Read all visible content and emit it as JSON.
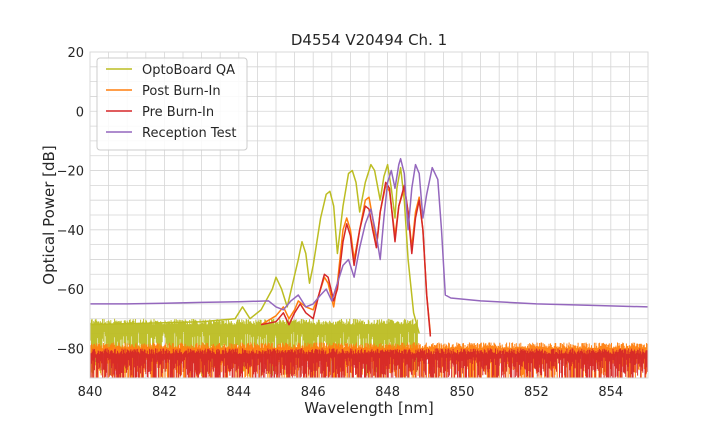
{
  "chart_data": {
    "type": "line",
    "title": "D4554 V20494 Ch. 1",
    "xlabel": "Wavelength [nm]",
    "ylabel": "Optical Power [dB]",
    "xlim": [
      840,
      855
    ],
    "ylim": [
      -90,
      20
    ],
    "x_ticks": [
      840,
      842,
      844,
      846,
      848,
      850,
      852,
      854
    ],
    "y_ticks": [
      20,
      0,
      -20,
      -40,
      -60,
      -80
    ],
    "x_tick_labels": [
      "840",
      "842",
      "844",
      "846",
      "848",
      "850",
      "852",
      "854"
    ],
    "y_tick_labels": [
      "20",
      "0",
      "−20",
      "−40",
      "−60",
      "−80"
    ],
    "minor_x_step": 0.5,
    "minor_y_step": 5,
    "grid": true,
    "legend_position": "top-left",
    "series": [
      {
        "name": "OptoBoard QA",
        "color": "#bcbd22",
        "noise_floor": {
          "x_start": 840.0,
          "x_end": 848.8,
          "level": -70,
          "spread": 15
        },
        "points": [
          [
            840.0,
            -72
          ],
          [
            843.0,
            -71
          ],
          [
            843.9,
            -70
          ],
          [
            844.1,
            -66
          ],
          [
            844.3,
            -70
          ],
          [
            844.6,
            -67
          ],
          [
            844.9,
            -60
          ],
          [
            845.0,
            -56
          ],
          [
            845.15,
            -60
          ],
          [
            845.3,
            -66
          ],
          [
            845.45,
            -58
          ],
          [
            845.6,
            -50
          ],
          [
            845.7,
            -44
          ],
          [
            845.8,
            -48
          ],
          [
            845.9,
            -58
          ],
          [
            846.0,
            -52
          ],
          [
            846.2,
            -36
          ],
          [
            846.35,
            -28
          ],
          [
            846.45,
            -27
          ],
          [
            846.55,
            -32
          ],
          [
            846.65,
            -48
          ],
          [
            846.8,
            -32
          ],
          [
            846.95,
            -21
          ],
          [
            847.05,
            -20
          ],
          [
            847.15,
            -24
          ],
          [
            847.25,
            -34
          ],
          [
            847.4,
            -24
          ],
          [
            847.55,
            -18
          ],
          [
            847.65,
            -20
          ],
          [
            847.8,
            -30
          ],
          [
            847.9,
            -22
          ],
          [
            848.0,
            -18
          ],
          [
            848.1,
            -26
          ],
          [
            848.2,
            -36
          ],
          [
            848.25,
            -26
          ],
          [
            848.35,
            -19
          ],
          [
            848.45,
            -30
          ],
          [
            848.55,
            -50
          ],
          [
            848.7,
            -68
          ],
          [
            848.85,
            -75
          ]
        ]
      },
      {
        "name": "Post Burn-In",
        "color": "#ff7f0e",
        "noise_floor": {
          "x_start": 840.0,
          "x_end": 855.0,
          "level": -78,
          "spread": 12
        },
        "points": [
          [
            844.6,
            -72
          ],
          [
            845.0,
            -69
          ],
          [
            845.2,
            -66
          ],
          [
            845.35,
            -70
          ],
          [
            845.5,
            -67
          ],
          [
            845.6,
            -64
          ],
          [
            845.8,
            -66
          ],
          [
            846.0,
            -67
          ],
          [
            846.15,
            -62
          ],
          [
            846.3,
            -56
          ],
          [
            846.4,
            -58
          ],
          [
            846.55,
            -66
          ],
          [
            846.65,
            -58
          ],
          [
            846.8,
            -40
          ],
          [
            846.9,
            -36
          ],
          [
            847.0,
            -40
          ],
          [
            847.1,
            -50
          ],
          [
            847.25,
            -40
          ],
          [
            847.4,
            -30
          ],
          [
            847.5,
            -29
          ],
          [
            847.6,
            -36
          ],
          [
            847.7,
            -46
          ],
          [
            847.8,
            -34
          ],
          [
            847.95,
            -25
          ],
          [
            848.05,
            -27
          ],
          [
            848.2,
            -42
          ],
          [
            848.3,
            -32
          ],
          [
            848.45,
            -26
          ],
          [
            848.55,
            -34
          ],
          [
            848.65,
            -46
          ],
          [
            848.75,
            -34
          ],
          [
            848.85,
            -29
          ],
          [
            848.95,
            -40
          ],
          [
            849.05,
            -62
          ],
          [
            849.15,
            -75
          ]
        ]
      },
      {
        "name": "Pre Burn-In",
        "color": "#d62728",
        "noise_floor": {
          "x_start": 840.0,
          "x_end": 855.0,
          "level": -80,
          "spread": 10
        },
        "points": [
          [
            844.6,
            -72
          ],
          [
            845.0,
            -71
          ],
          [
            845.2,
            -68
          ],
          [
            845.35,
            -72
          ],
          [
            845.5,
            -68
          ],
          [
            845.65,
            -65
          ],
          [
            845.8,
            -68
          ],
          [
            846.0,
            -70
          ],
          [
            846.15,
            -62
          ],
          [
            846.3,
            -55
          ],
          [
            846.4,
            -56
          ],
          [
            846.55,
            -64
          ],
          [
            846.65,
            -60
          ],
          [
            846.8,
            -44
          ],
          [
            846.9,
            -38
          ],
          [
            847.0,
            -42
          ],
          [
            847.1,
            -52
          ],
          [
            847.25,
            -40
          ],
          [
            847.4,
            -32
          ],
          [
            847.5,
            -33
          ],
          [
            847.6,
            -40
          ],
          [
            847.7,
            -46
          ],
          [
            847.8,
            -34
          ],
          [
            847.95,
            -24
          ],
          [
            848.05,
            -26
          ],
          [
            848.2,
            -44
          ],
          [
            848.3,
            -32
          ],
          [
            848.45,
            -25
          ],
          [
            848.55,
            -34
          ],
          [
            848.65,
            -48
          ],
          [
            848.75,
            -36
          ],
          [
            848.85,
            -30
          ],
          [
            848.95,
            -40
          ],
          [
            849.05,
            -62
          ],
          [
            849.15,
            -76
          ]
        ]
      },
      {
        "name": "Reception Test",
        "color": "#9467bd",
        "noise_floor": null,
        "points": [
          [
            840.0,
            -65
          ],
          [
            841.0,
            -65
          ],
          [
            842.0,
            -64.8
          ],
          [
            843.0,
            -64.5
          ],
          [
            844.0,
            -64.3
          ],
          [
            844.8,
            -64
          ],
          [
            845.0,
            -66
          ],
          [
            845.2,
            -67
          ],
          [
            845.4,
            -64
          ],
          [
            845.6,
            -62
          ],
          [
            845.8,
            -66
          ],
          [
            846.0,
            -65
          ],
          [
            846.2,
            -62
          ],
          [
            846.35,
            -60
          ],
          [
            846.5,
            -64
          ],
          [
            846.65,
            -58
          ],
          [
            846.8,
            -52
          ],
          [
            846.95,
            -50
          ],
          [
            847.1,
            -56
          ],
          [
            847.25,
            -46
          ],
          [
            847.4,
            -38
          ],
          [
            847.55,
            -33
          ],
          [
            847.7,
            -42
          ],
          [
            847.8,
            -50
          ],
          [
            847.9,
            -36
          ],
          [
            848.0,
            -24
          ],
          [
            848.1,
            -20
          ],
          [
            848.2,
            -26
          ],
          [
            848.3,
            -18
          ],
          [
            848.35,
            -16
          ],
          [
            848.45,
            -21
          ],
          [
            848.55,
            -40
          ],
          [
            848.65,
            -26
          ],
          [
            848.75,
            -18
          ],
          [
            848.85,
            -21
          ],
          [
            848.95,
            -36
          ],
          [
            849.05,
            -28
          ],
          [
            849.2,
            -19
          ],
          [
            849.35,
            -23
          ],
          [
            849.45,
            -40
          ],
          [
            849.55,
            -62
          ],
          [
            849.7,
            -63
          ],
          [
            850.5,
            -64
          ],
          [
            852.0,
            -65
          ],
          [
            853.5,
            -65.5
          ],
          [
            855.0,
            -66
          ]
        ]
      }
    ]
  }
}
